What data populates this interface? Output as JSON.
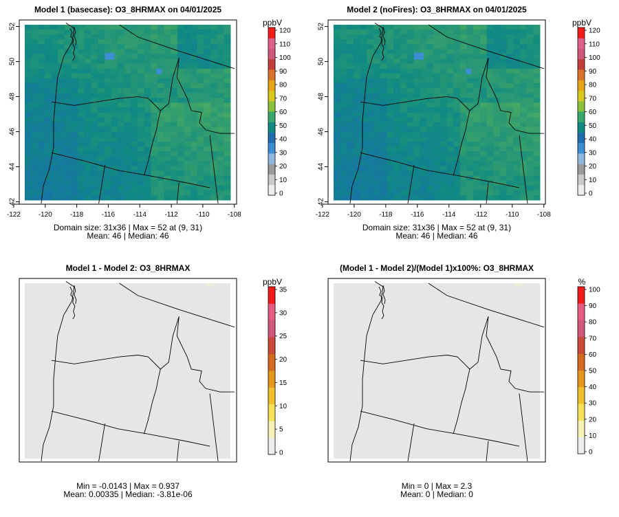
{
  "panels": [
    {
      "id": "model1",
      "title": "Model 1 (basecase): O3_8HRMAX on 04/01/2025",
      "stats": [
        "Domain size: 31x36 | Max = 52 at (9, 31)",
        "Mean: 46 |  Median: 46"
      ],
      "field": "ozone",
      "show_axes": true,
      "x_ticks": [
        "-122",
        "-120",
        "-118",
        "-116",
        "-114",
        "-112",
        "-110",
        "-108"
      ],
      "y_ticks": [
        "42",
        "44",
        "46",
        "48",
        "50",
        "52"
      ],
      "legend": {
        "unit": "ppbV",
        "ticks": [
          "0",
          "10",
          "20",
          "30",
          "40",
          "50",
          "60",
          "70",
          "80",
          "90",
          "100",
          "110",
          "120"
        ],
        "colors": [
          "#ededed",
          "#c9c9c9",
          "#9a9a9a",
          "#8fb8e0",
          "#3d8ed3",
          "#1f6fb0",
          "#118a84",
          "#39a86b",
          "#8cc13c",
          "#d9c81f",
          "#e8a617",
          "#d9722b",
          "#c2403a",
          "#d0587a",
          "#e0608a",
          "#f31a1a"
        ]
      }
    },
    {
      "id": "model2",
      "title": "Model 2 (noFires): O3_8HRMAX on 04/01/2025",
      "stats": [
        "Domain size: 31x36 | Max = 52 at (9, 31)",
        "Mean: 46 |  Median: 46"
      ],
      "field": "ozone",
      "show_axes": true,
      "x_ticks": [
        "-122",
        "-120",
        "-118",
        "-116",
        "-114",
        "-112",
        "-110",
        "-108"
      ],
      "y_ticks": [
        "42",
        "44",
        "46",
        "48",
        "50",
        "52"
      ],
      "legend": {
        "unit": "ppbV",
        "ticks": [
          "0",
          "10",
          "20",
          "30",
          "40",
          "50",
          "60",
          "70",
          "80",
          "90",
          "100",
          "110",
          "120"
        ],
        "colors": [
          "#ededed",
          "#c9c9c9",
          "#9a9a9a",
          "#8fb8e0",
          "#3d8ed3",
          "#1f6fb0",
          "#118a84",
          "#39a86b",
          "#8cc13c",
          "#d9c81f",
          "#e8a617",
          "#d9722b",
          "#c2403a",
          "#d0587a",
          "#e0608a",
          "#f31a1a"
        ]
      }
    },
    {
      "id": "diff",
      "title": "Model 1 - Model 2: O3_8HRMAX",
      "stats": [
        "Min = -0.0143 | Max = 0.937",
        "Mean: 0.00335 |  Median: -3.81e-06"
      ],
      "field": "flat",
      "flat_color": "#e6e6e6",
      "show_axes": false,
      "legend": {
        "unit": "ppbV",
        "ticks": [
          "0",
          "5",
          "10",
          "15",
          "20",
          "25",
          "30",
          "35"
        ],
        "colors": [
          "#ececec",
          "#f6f2b6",
          "#f5e25a",
          "#f0c12a",
          "#e6971e",
          "#d66a1e",
          "#c94a3a",
          "#d0587a",
          "#e55a7e",
          "#f31a1a"
        ]
      }
    },
    {
      "id": "pct",
      "title": "(Model 1 - Model 2)/(Model 1)x100%: O3_8HRMAX",
      "stats": [
        "Min = 0 | Max = 2.3",
        "Mean: 0 |  Median: 0"
      ],
      "field": "flat",
      "flat_color": "#e6e6e6",
      "show_axes": false,
      "legend": {
        "unit": "%",
        "ticks": [
          "0",
          "10",
          "20",
          "30",
          "40",
          "50",
          "60",
          "70",
          "80",
          "90",
          "100"
        ],
        "colors": [
          "#ececec",
          "#f6f2b6",
          "#f5e25a",
          "#f0c12a",
          "#e6971e",
          "#d66a1e",
          "#c94a3a",
          "#d0587a",
          "#e55a7e",
          "#f31a1a"
        ]
      }
    }
  ]
}
